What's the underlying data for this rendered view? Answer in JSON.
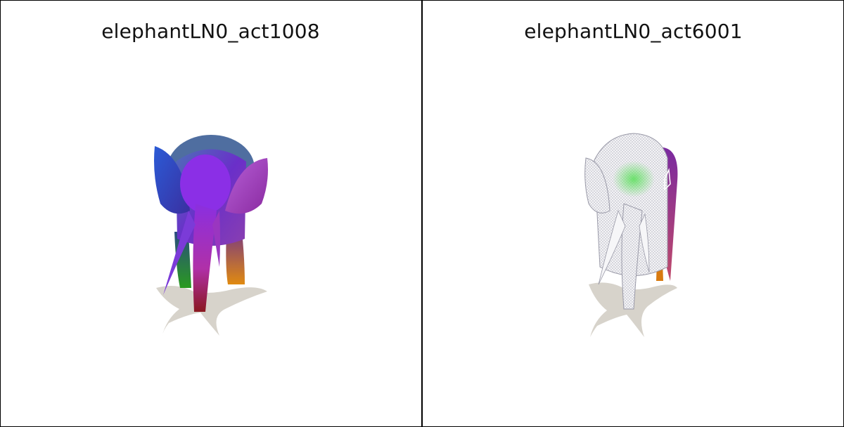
{
  "panels": [
    {
      "title": "elephantLN0_act1008"
    },
    {
      "title": "elephantLN0_act6001"
    }
  ]
}
